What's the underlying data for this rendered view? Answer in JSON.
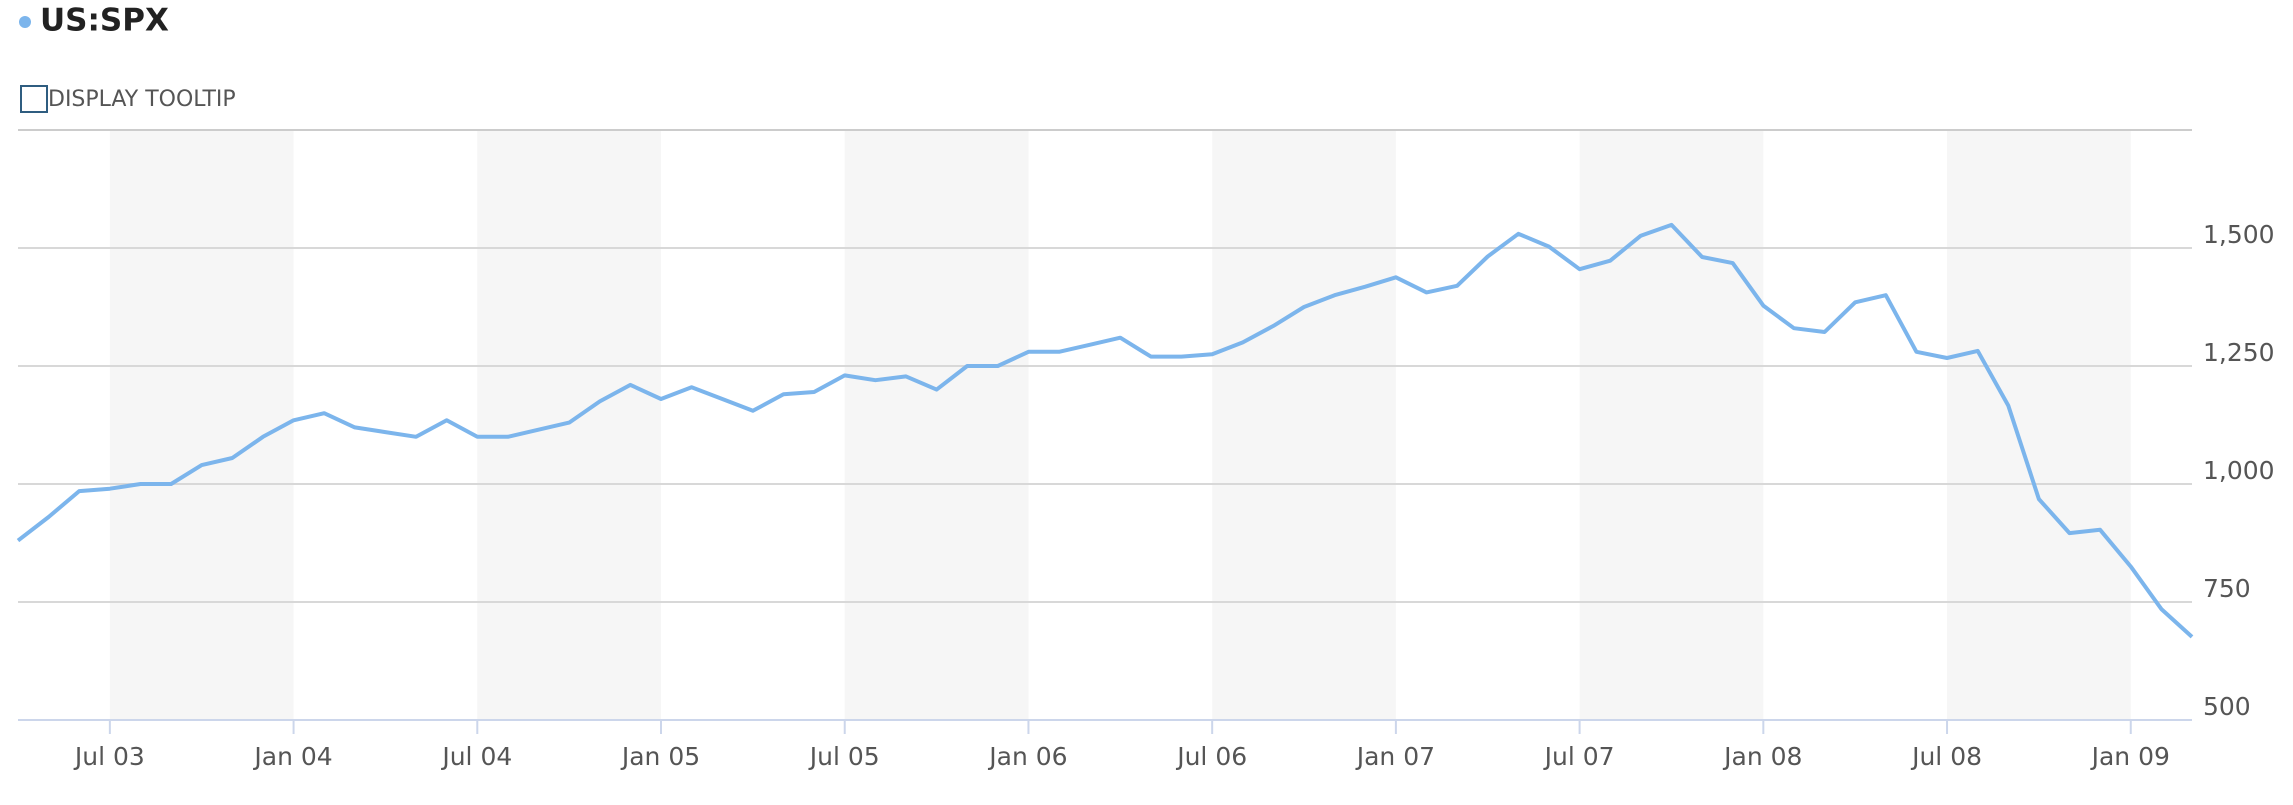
{
  "controls": {
    "tooltip_toggle": "DISPLAY TOOLTIP"
  },
  "chart_data": {
    "type": "line",
    "x": [
      "2003-04",
      "2003-05",
      "2003-06",
      "2003-07",
      "2003-08",
      "2003-09",
      "2003-10",
      "2003-11",
      "2003-12",
      "2004-01",
      "2004-02",
      "2004-03",
      "2004-04",
      "2004-05",
      "2004-06",
      "2004-07",
      "2004-08",
      "2004-09",
      "2004-10",
      "2004-11",
      "2004-12",
      "2005-01",
      "2005-02",
      "2005-03",
      "2005-04",
      "2005-05",
      "2005-06",
      "2005-07",
      "2005-08",
      "2005-09",
      "2005-10",
      "2005-11",
      "2005-12",
      "2006-01",
      "2006-02",
      "2006-03",
      "2006-04",
      "2006-05",
      "2006-06",
      "2006-07",
      "2006-08",
      "2006-09",
      "2006-10",
      "2006-11",
      "2006-12",
      "2007-01",
      "2007-02",
      "2007-03",
      "2007-04",
      "2007-05",
      "2007-06",
      "2007-07",
      "2007-08",
      "2007-09",
      "2007-10",
      "2007-11",
      "2007-12",
      "2008-01",
      "2008-02",
      "2008-03",
      "2008-04",
      "2008-05",
      "2008-06",
      "2008-07",
      "2008-08",
      "2008-09",
      "2008-10",
      "2008-11",
      "2008-12",
      "2009-01",
      "2009-02",
      "2009-03"
    ],
    "series": [
      {
        "name": "US:SPX",
        "color": "#7cb5ec",
        "values": [
          880,
          930,
          985,
          990,
          1000,
          1000,
          1040,
          1055,
          1100,
          1135,
          1150,
          1120,
          1110,
          1100,
          1135,
          1100,
          1100,
          1115,
          1130,
          1175,
          1210,
          1180,
          1205,
          1180,
          1155,
          1190,
          1195,
          1230,
          1220,
          1228,
          1200,
          1250,
          1250,
          1280,
          1280,
          1295,
          1310,
          1270,
          1270,
          1275,
          1300,
          1335,
          1375,
          1400,
          1418,
          1438,
          1406,
          1420,
          1482,
          1530,
          1503,
          1455,
          1473,
          1526,
          1549,
          1481,
          1468,
          1378,
          1330,
          1322,
          1385,
          1400,
          1280,
          1267,
          1282,
          1166,
          968,
          896,
          903,
          825,
          735,
          676
        ]
      }
    ],
    "xlim": [
      "2003-04",
      "2009-03"
    ],
    "xticks": [
      {
        "value": "2003-07",
        "label": "Jul 03"
      },
      {
        "value": "2004-01",
        "label": "Jan 04"
      },
      {
        "value": "2004-07",
        "label": "Jul 04"
      },
      {
        "value": "2005-01",
        "label": "Jan 05"
      },
      {
        "value": "2005-07",
        "label": "Jul 05"
      },
      {
        "value": "2006-01",
        "label": "Jan 06"
      },
      {
        "value": "2006-07",
        "label": "Jul 06"
      },
      {
        "value": "2007-01",
        "label": "Jan 07"
      },
      {
        "value": "2007-07",
        "label": "Jul 07"
      },
      {
        "value": "2008-01",
        "label": "Jan 08"
      },
      {
        "value": "2008-07",
        "label": "Jul 08"
      },
      {
        "value": "2009-01",
        "label": "Jan 09"
      }
    ],
    "ylim": [
      500,
      1750
    ],
    "yticks": [
      500,
      750,
      {
        "value": 1000,
        "label": "1,000"
      },
      {
        "value": 1250,
        "label": "1,250"
      },
      {
        "value": 1500,
        "label": "1,500"
      }
    ],
    "grid": true
  }
}
